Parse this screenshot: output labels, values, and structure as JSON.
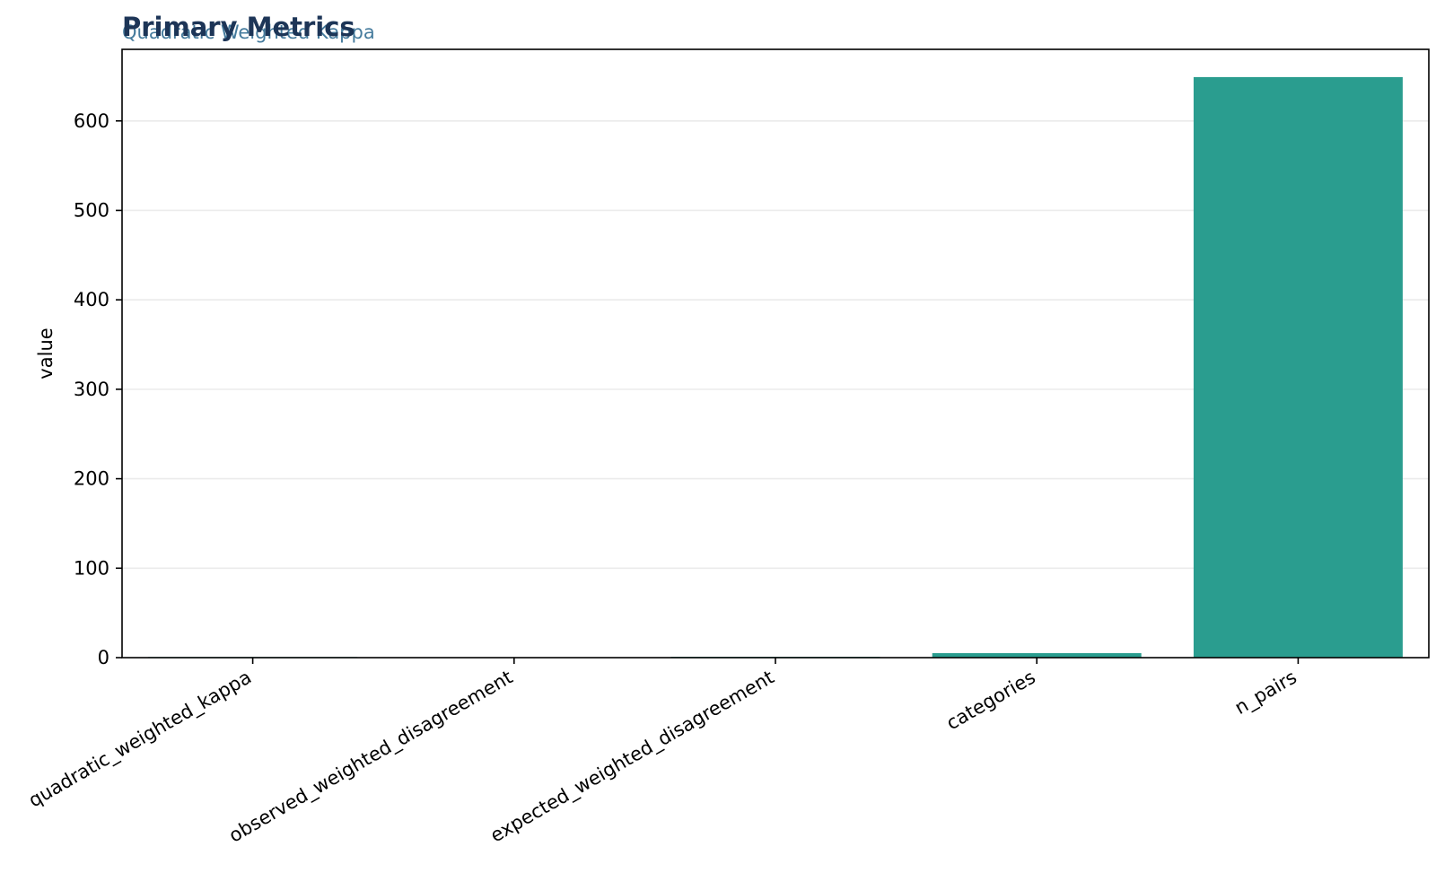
{
  "chart_data": {
    "type": "bar",
    "title": "Primary Metrics",
    "subtitle": "Quadratic Weighted Kappa",
    "xlabel": "",
    "ylabel": "value",
    "categories": [
      "quadratic_weighted_kappa",
      "observed_weighted_disagreement",
      "expected_weighted_disagreement",
      "categories",
      "n_pairs"
    ],
    "values": [
      0.7,
      0.3,
      0.9,
      5,
      649
    ],
    "ylim": [
      0,
      680
    ],
    "yticks": [
      0,
      100,
      200,
      300,
      400,
      500,
      600
    ],
    "grid": "horizontal",
    "legend": "none",
    "colors": {
      "bar": "#2a9d8f",
      "title": "#1d3557",
      "subtitle": "#457b9d",
      "grid": "#ebebeb",
      "axis": "#000000"
    }
  }
}
